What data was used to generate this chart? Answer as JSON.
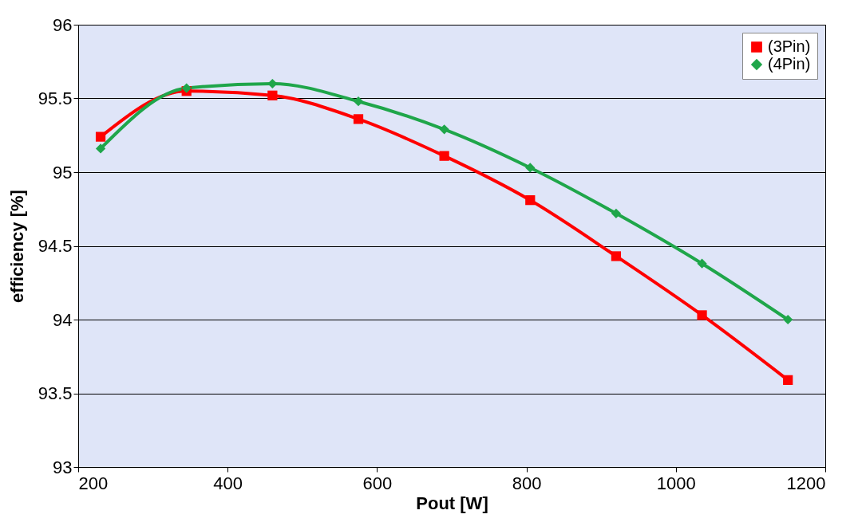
{
  "chart_data": {
    "type": "line",
    "xlabel": "Pout [W]",
    "ylabel": "efficiency [%]",
    "x": [
      230,
      345,
      460,
      575,
      690,
      805,
      920,
      1035,
      1150
    ],
    "series": [
      {
        "name": "(3Pin)",
        "color": "#ff0000",
        "marker": "square",
        "values": [
          95.24,
          95.55,
          95.52,
          95.36,
          95.11,
          94.81,
          94.43,
          94.03,
          93.59
        ]
      },
      {
        "name": "(4Pin)",
        "color": "#1fa64a",
        "marker": "diamond",
        "values": [
          95.16,
          95.57,
          95.6,
          95.48,
          95.29,
          95.03,
          94.72,
          94.38,
          94.0
        ]
      }
    ],
    "xlim": [
      200,
      1200
    ],
    "xticks": [
      200,
      400,
      600,
      800,
      1000,
      1200
    ],
    "ylim": [
      93,
      96
    ],
    "yticks": [
      93,
      93.5,
      94,
      94.5,
      95,
      95.5,
      96
    ],
    "grid": "y",
    "legend": "top right",
    "line_style": "solid"
  }
}
